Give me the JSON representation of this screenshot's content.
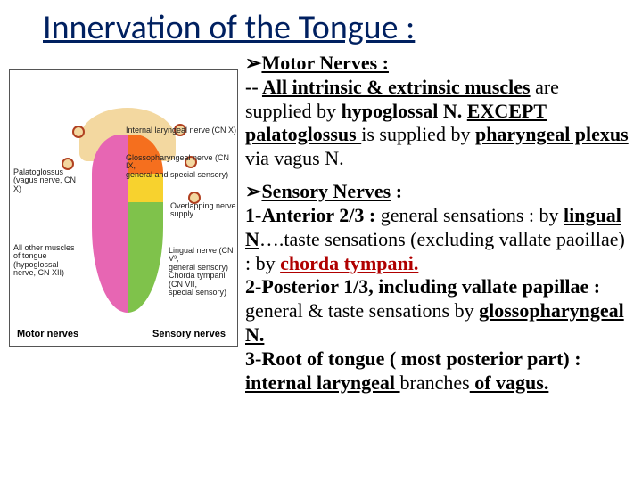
{
  "title": "Innervation of the Tongue :",
  "diagram": {
    "labels": {
      "palatoglossus": "Palatoglossus\n(vagus nerve, CN X)",
      "all_other": "All other muscles\nof tongue\n(hypoglossal\nnerve, CN XII)",
      "internal_laryngeal": "Internal laryngeal nerve (CN X)",
      "glossopharyngeal": "Glossopharyngeal nerve (CN IX,\ngeneral and special sensory)",
      "overlapping": "Overlapping nerve supply",
      "lingual": "Lingual nerve (CN V³,\ngeneral sensory)\nChorda tympani (CN VII,\nspecial sensory)"
    },
    "bottom_left": "Motor nerves",
    "bottom_right": "Sensory nerves"
  },
  "motor": {
    "heading": "Motor Nerves :",
    "body_1": "-- ",
    "body_2": "All intrinsic & extrinsic muscles",
    "body_3": " are supplied by ",
    "body_4": "hypoglossal N.",
    "body_5": " ",
    "body_6": "EXCEPT palatoglossus ",
    "body_7": "is supplied by ",
    "body_8": "pharyngeal plexus ",
    "body_9": "via vagus N."
  },
  "sensory": {
    "heading": "Sensory Nerves",
    "colon": " :",
    "l1a": "1-Anterior 2/3 : ",
    "l1b": "general sensations  : by ",
    "l1c": "lingual N",
    "l1d": "….taste sensations (excluding vallate paoillae) : by ",
    "l1e": "chorda tympani.",
    "l2a": "2-Posterior 1/3, including vallate papillae : ",
    "l2b": "general  & taste sensations by ",
    "l2c": "glossopharyngeal N.",
    "l3a": "3-Root of tongue ( most posterior part) : ",
    "l3b": "internal laryngeal ",
    "l3c": "branches",
    "l3d": " of vagus."
  }
}
